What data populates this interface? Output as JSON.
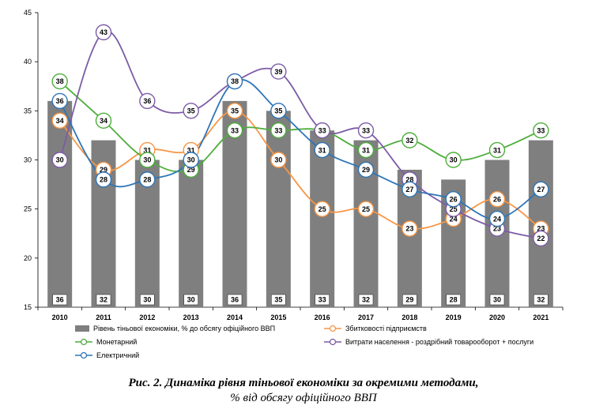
{
  "chart_data": {
    "type": "bar",
    "categories": [
      "2010",
      "2011",
      "2012",
      "2013",
      "2014",
      "2015",
      "2016",
      "2017",
      "2018",
      "2019",
      "2020",
      "2021"
    ],
    "ylim": [
      15,
      45
    ],
    "yticks": [
      15,
      20,
      25,
      30,
      35,
      40,
      45
    ],
    "grid": false,
    "legend_position": "bottom",
    "bars": {
      "name": "Рівень тіньової економіки, % до обсягу офіційного ВВП",
      "color": "#7f7f7f",
      "values": [
        36,
        32,
        30,
        30,
        36,
        35,
        33,
        32,
        29,
        28,
        30,
        32
      ]
    },
    "series": [
      {
        "name": "Збитковості підприємств",
        "color": "#f79646",
        "values": [
          34,
          29,
          31,
          31,
          35,
          30,
          25,
          25,
          23,
          24,
          26,
          23
        ]
      },
      {
        "name": "Монетарний",
        "color": "#4ead3c",
        "values": [
          38,
          34,
          30,
          29,
          33,
          33,
          33,
          31,
          32,
          30,
          31,
          33
        ]
      },
      {
        "name": "Витрати населення - роздрібний товарооборот + послуги",
        "color": "#7d5ca6",
        "values": [
          30,
          43,
          36,
          35,
          38,
          39,
          33,
          33,
          28,
          25,
          23,
          22
        ]
      },
      {
        "name": "Електричний",
        "color": "#2e75b6",
        "values": [
          36,
          28,
          28,
          30,
          38,
          35,
          31,
          29,
          27,
          26,
          24,
          27
        ]
      }
    ]
  },
  "caption": {
    "line1": "Рис. 2. Динаміка рівня тіньової економіки за окремими методами,",
    "line2": "% від обсягу офіційного ВВП"
  }
}
